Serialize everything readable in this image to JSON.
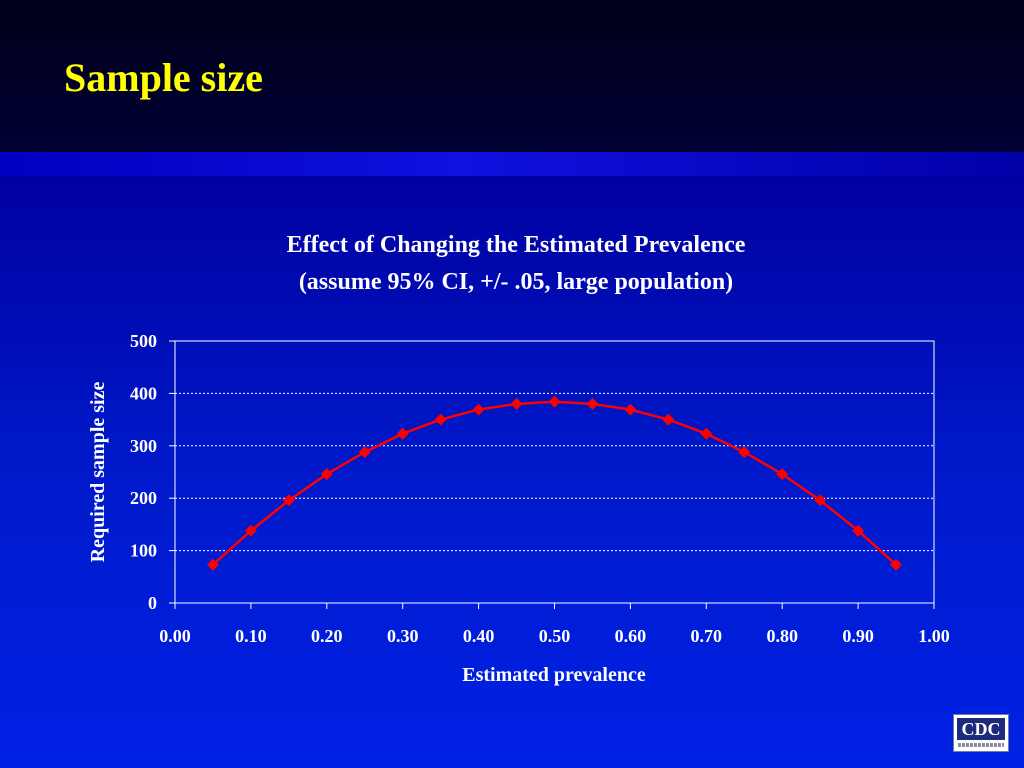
{
  "slide": {
    "title": "Sample size"
  },
  "colors": {
    "title_text": "#ffff00",
    "series_line": "#ff0000",
    "axis_text": "#ffffff",
    "gridline": "#ffffff"
  },
  "logo": {
    "text": "CDC"
  },
  "chart_data": {
    "type": "line",
    "title_lines": [
      "Effect of Changing the Estimated Prevalence",
      "(assume 95% CI, +/- .05, large population)"
    ],
    "xlabel": "Estimated prevalence",
    "ylabel": "Required sample size",
    "xlim": [
      0,
      1
    ],
    "ylim": [
      0,
      500
    ],
    "x_ticks": [
      "0.00",
      "0.10",
      "0.20",
      "0.30",
      "0.40",
      "0.50",
      "0.60",
      "0.70",
      "0.80",
      "0.90",
      "1.00"
    ],
    "y_ticks": [
      "0",
      "100",
      "200",
      "300",
      "400",
      "500"
    ],
    "grid": "horizontal dotted",
    "legend": "none",
    "series": [
      {
        "marker": "diamond",
        "x": [
          0.05,
          0.1,
          0.15,
          0.2,
          0.25,
          0.3,
          0.35,
          0.4,
          0.45,
          0.5,
          0.55,
          0.6,
          0.65,
          0.7,
          0.75,
          0.8,
          0.85,
          0.9,
          0.95
        ],
        "y": [
          73,
          138,
          196,
          246,
          288,
          323,
          350,
          369,
          380,
          384,
          380,
          369,
          350,
          323,
          288,
          246,
          196,
          138,
          73
        ]
      }
    ]
  }
}
